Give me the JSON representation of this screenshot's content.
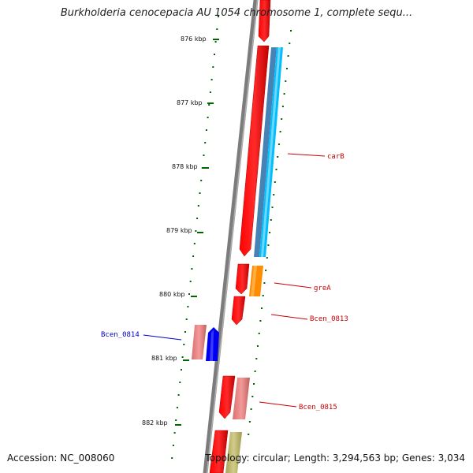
{
  "title": "Burkholderia cenocepacia AU 1054 chromosome 1, complete sequ...",
  "footer": {
    "accession": "Accession: NC_008060",
    "topology": "Topology: circular; Length: 3,294,563 bp; Genes: 3,034"
  },
  "scale": {
    "ticks": [
      "876 kbp",
      "877 kbp",
      "878 kbp",
      "879 kbp",
      "880 kbp",
      "881 kbp",
      "882 kbp"
    ]
  },
  "genes": [
    {
      "label": "carB",
      "color": "#ff0000",
      "strand": "forward"
    },
    {
      "label": "greA",
      "color": "#ff8c00",
      "strand": "forward"
    },
    {
      "label": "Bcen_0813",
      "color": "#ff0000",
      "strand": "forward"
    },
    {
      "label": "Bcen_0814",
      "color": "#0000ee",
      "strand": "reverse"
    },
    {
      "label": "Bcen_0815",
      "color": "#f08080",
      "strand": "forward"
    }
  ],
  "colors": {
    "forward_gene": "#ff0000",
    "cds_blue": "#1e90ff",
    "cds_steel": "#4682b4",
    "cds_sky": "#00bfff",
    "orange": "#ff8c00",
    "pink": "#f08080",
    "reverse_gene": "#0000ee",
    "khaki": "#bdb76b",
    "backbone": "#808080",
    "tick": "#006400",
    "label_red": "#cc0000",
    "label_blue": "#0000cc"
  }
}
